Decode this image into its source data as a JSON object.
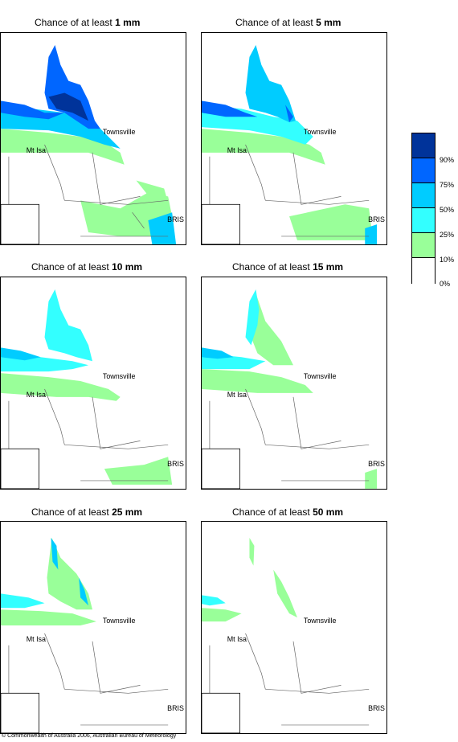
{
  "panels": [
    {
      "prefix": "Chance of at least ",
      "amount": "1 mm"
    },
    {
      "prefix": "Chance of at least ",
      "amount": "5 mm"
    },
    {
      "prefix": "Chance of at least ",
      "amount": "10 mm"
    },
    {
      "prefix": "Chance of at least ",
      "amount": "15 mm"
    },
    {
      "prefix": "Chance of at least ",
      "amount": "25 mm"
    },
    {
      "prefix": "Chance of at least ",
      "amount": "50 mm"
    }
  ],
  "places": {
    "townsville": "Townsville",
    "mt_isa": "Mt Isa",
    "bris": "BRIS"
  },
  "legend": {
    "labels": [
      "90%",
      "75%",
      "50%",
      "25%",
      "10%",
      "0%"
    ],
    "colors": [
      "#00339a",
      "#0066ff",
      "#00ccff",
      "#33ffff",
      "#99ff99",
      "#ffffff"
    ]
  },
  "copyright": "© Commonwealth of Australia 2006, Australian Bureau of Meteorology"
}
